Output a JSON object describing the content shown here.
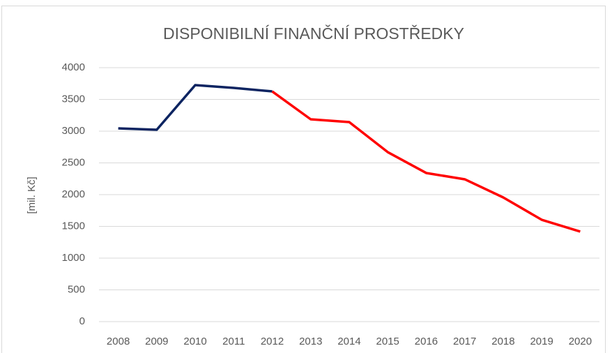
{
  "chart_data": {
    "type": "line",
    "title": "DISPONIBILNÍ FINANČNÍ PROSTŘEDKY",
    "y_label": "[mil. Kč]",
    "categories": [
      "2008",
      "2009",
      "2010",
      "2011",
      "2012",
      "2013",
      "2014",
      "2015",
      "2016",
      "2017",
      "2018",
      "2019",
      "2020"
    ],
    "series": [
      {
        "color": "#0d2461",
        "values": [
          3044,
          3022,
          3725,
          3681,
          3626,
          null,
          null,
          null,
          null,
          null,
          null,
          null,
          null
        ]
      },
      {
        "color": "#ff0000",
        "values": [
          null,
          null,
          null,
          null,
          3626,
          3187,
          3143,
          2670,
          2341,
          2242,
          1956,
          1604,
          1418
        ]
      }
    ],
    "ylim": [
      0,
      4000
    ],
    "yticks": [
      0,
      500,
      1000,
      1500,
      2000,
      2500,
      3000,
      3500,
      4000
    ],
    "grid": true
  }
}
